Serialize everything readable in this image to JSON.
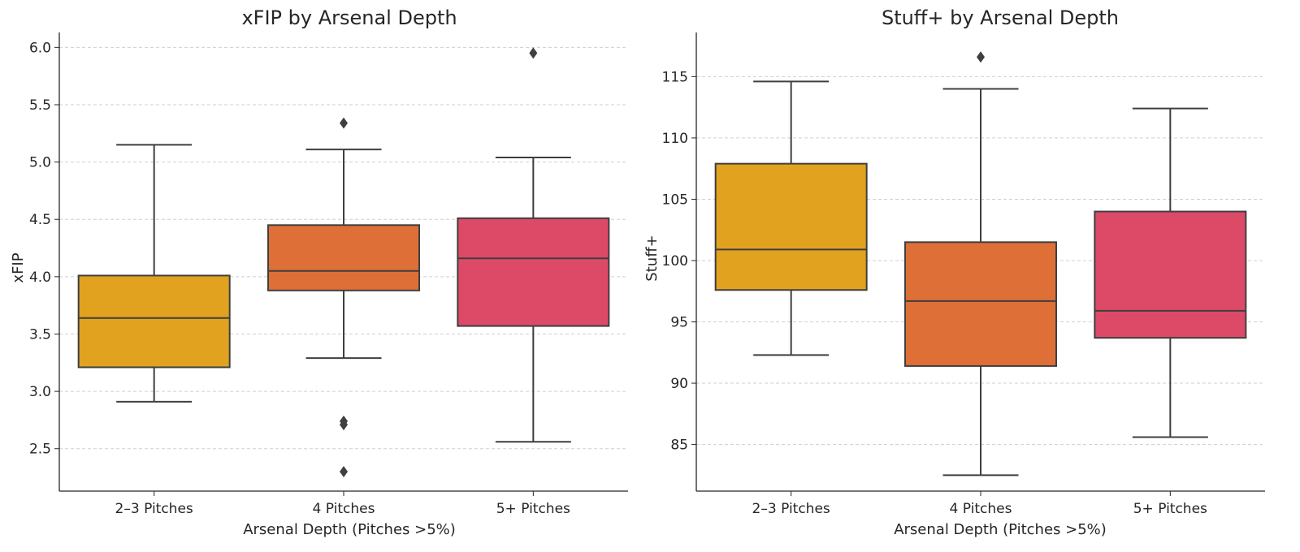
{
  "chart_data": [
    {
      "type": "box",
      "title": "xFIP by Arsenal Depth",
      "xlabel": "Arsenal Depth (Pitches >5%)",
      "ylabel": "xFIP",
      "categories": [
        "2–3 Pitches",
        "4 Pitches",
        "5+ Pitches"
      ],
      "ylim": [
        2.13,
        6.13
      ],
      "yticks": [
        2.5,
        3.0,
        3.5,
        4.0,
        4.5,
        5.0,
        5.5,
        6.0
      ],
      "grid": "y-dashed",
      "colors": [
        "#e0a21f",
        "#de6f37",
        "#dd4a68"
      ],
      "boxes": [
        {
          "category": "2–3 Pitches",
          "whisker_low": 2.91,
          "q1": 3.21,
          "median": 3.64,
          "q3": 4.01,
          "whisker_high": 5.15,
          "outliers": []
        },
        {
          "category": "4 Pitches",
          "whisker_low": 3.29,
          "q1": 3.88,
          "median": 4.05,
          "q3": 4.45,
          "whisker_high": 5.11,
          "outliers": [
            5.34,
            2.74,
            2.71,
            2.3
          ]
        },
        {
          "category": "5+ Pitches",
          "whisker_low": 2.56,
          "q1": 3.57,
          "median": 4.16,
          "q3": 4.51,
          "whisker_high": 5.04,
          "outliers": [
            5.95
          ]
        }
      ]
    },
    {
      "type": "box",
      "title": "Stuff+ by Arsenal Depth",
      "xlabel": "Arsenal Depth (Pitches >5%)",
      "ylabel": "Stuff+",
      "categories": [
        "2–3 Pitches",
        "4 Pitches",
        "5+ Pitches"
      ],
      "ylim": [
        81.2,
        118.6
      ],
      "yticks": [
        85,
        90,
        95,
        100,
        105,
        110,
        115
      ],
      "grid": "y-dashed",
      "colors": [
        "#e0a21f",
        "#de6f37",
        "#dd4a68"
      ],
      "boxes": [
        {
          "category": "2–3 Pitches",
          "whisker_low": 92.3,
          "q1": 97.6,
          "median": 100.9,
          "q3": 107.9,
          "whisker_high": 114.6,
          "outliers": []
        },
        {
          "category": "4 Pitches",
          "whisker_low": 82.5,
          "q1": 91.4,
          "median": 96.7,
          "q3": 101.5,
          "whisker_high": 114.0,
          "outliers": [
            116.6
          ]
        },
        {
          "category": "5+ Pitches",
          "whisker_low": 85.6,
          "q1": 93.7,
          "median": 95.9,
          "q3": 104.0,
          "whisker_high": 112.4,
          "outliers": []
        }
      ]
    }
  ]
}
